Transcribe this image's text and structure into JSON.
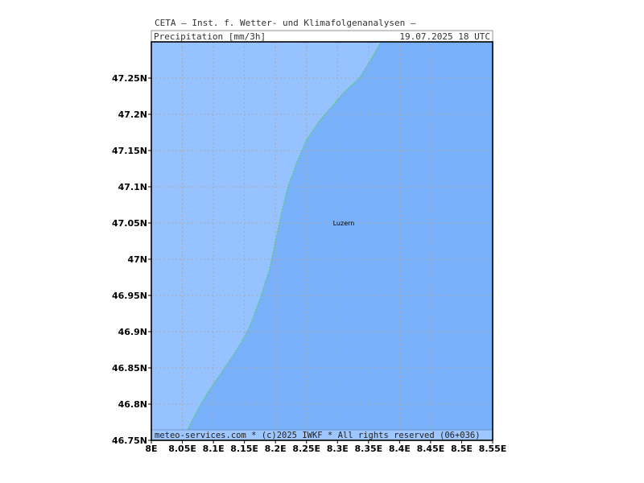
{
  "header": {
    "source": "CETA — Inst. f. Wetter- und Klimafolgenanalysen —",
    "variable": "Precipitation [mm/3h]",
    "datetime": "19.07.2025  18 UTC"
  },
  "footer": {
    "credit": "meteo-services.com * (c)2025 IWKF * All rights reserved (06+036)"
  },
  "map": {
    "lon_range": [
      8.0,
      8.55
    ],
    "lat_range": [
      46.75,
      47.3
    ],
    "lon_ticks": [
      "8E",
      "8.05E",
      "8.1E",
      "8.15E",
      "8.2E",
      "8.25E",
      "8.3E",
      "8.35E",
      "8.4E",
      "8.45E",
      "8.5E",
      "8.55E"
    ],
    "lat_ticks": [
      "46.75N",
      "46.8N",
      "46.85N",
      "46.9N",
      "46.95N",
      "47N",
      "47.05N",
      "47.1N",
      "47.15N",
      "47.2N",
      "47.25N"
    ],
    "cities": [
      {
        "name": "Luzern",
        "lon": 8.31,
        "lat": 47.05
      }
    ],
    "colors": {
      "light_band": "#96c3ff",
      "dark_band": "#78b1fa",
      "contour": "#5fc882",
      "grid": "#a8a8a8"
    },
    "boundary": [
      [
        8.05,
        46.75
      ],
      [
        8.07,
        46.785
      ],
      [
        8.09,
        46.815
      ],
      [
        8.11,
        46.84
      ],
      [
        8.13,
        46.865
      ],
      [
        8.145,
        46.885
      ],
      [
        8.16,
        46.91
      ],
      [
        8.175,
        46.945
      ],
      [
        8.19,
        46.985
      ],
      [
        8.2,
        47.025
      ],
      [
        8.21,
        47.065
      ],
      [
        8.22,
        47.1
      ],
      [
        8.235,
        47.135
      ],
      [
        8.25,
        47.165
      ],
      [
        8.27,
        47.19
      ],
      [
        8.29,
        47.21
      ],
      [
        8.31,
        47.23
      ],
      [
        8.335,
        47.25
      ],
      [
        8.35,
        47.27
      ],
      [
        8.37,
        47.3
      ]
    ]
  }
}
